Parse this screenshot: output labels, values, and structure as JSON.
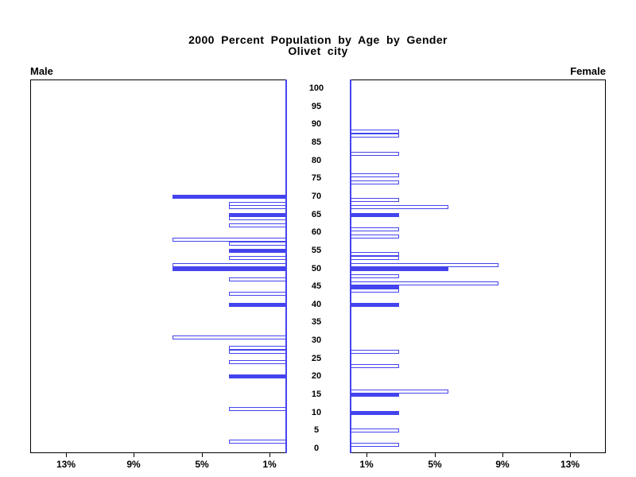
{
  "title": {
    "line1": "2000 Percent Population by Age by Gender",
    "line2": "Olivet city"
  },
  "panels": {
    "male_label": "Male",
    "female_label": "Female"
  },
  "colors": {
    "bar_blue": "#4444ee",
    "axis_black": "#000000",
    "hollow_fill": "#ffffff"
  },
  "chart_data": {
    "type": "bar",
    "subtype": "population-pyramid",
    "title": "2000 Percent Population by Age by Gender",
    "subtitle": "Olivet city",
    "unit": "percent of population",
    "age_axis": {
      "min": 0,
      "max": 100,
      "tick_interval": 5
    },
    "pct_axis": {
      "max": 15,
      "male_ticks": [
        13,
        9,
        5,
        1
      ],
      "female_ticks": [
        1,
        5,
        9,
        13
      ],
      "male_tick_labels": [
        "13%",
        "9%",
        "5%",
        "1%"
      ],
      "female_tick_labels": [
        "1%",
        "5%",
        "9%",
        "13%"
      ]
    },
    "legend": {
      "filled_means": "highlighted age group",
      "hollow_means": "regular age group"
    },
    "male": [
      {
        "age": 70,
        "pct": 6.7,
        "filled": true
      },
      {
        "age": 68,
        "pct": 3.4,
        "filled": false
      },
      {
        "age": 67,
        "pct": 3.4,
        "filled": false
      },
      {
        "age": 65,
        "pct": 3.4,
        "filled": true
      },
      {
        "age": 64,
        "pct": 3.4,
        "filled": false
      },
      {
        "age": 62,
        "pct": 3.4,
        "filled": false
      },
      {
        "age": 58,
        "pct": 6.7,
        "filled": false
      },
      {
        "age": 57,
        "pct": 3.4,
        "filled": false
      },
      {
        "age": 55,
        "pct": 3.4,
        "filled": true
      },
      {
        "age": 53,
        "pct": 3.4,
        "filled": false
      },
      {
        "age": 51,
        "pct": 6.7,
        "filled": false
      },
      {
        "age": 50,
        "pct": 6.7,
        "filled": true
      },
      {
        "age": 47,
        "pct": 3.4,
        "filled": false
      },
      {
        "age": 43,
        "pct": 3.4,
        "filled": false
      },
      {
        "age": 40,
        "pct": 3.4,
        "filled": true
      },
      {
        "age": 31,
        "pct": 6.7,
        "filled": false
      },
      {
        "age": 28,
        "pct": 3.4,
        "filled": false
      },
      {
        "age": 27,
        "pct": 3.4,
        "filled": false
      },
      {
        "age": 24,
        "pct": 3.4,
        "filled": false
      },
      {
        "age": 20,
        "pct": 3.4,
        "filled": true
      },
      {
        "age": 11,
        "pct": 3.4,
        "filled": false
      },
      {
        "age": 2,
        "pct": 3.4,
        "filled": false
      }
    ],
    "female": [
      {
        "age": 88,
        "pct": 2.9,
        "filled": false
      },
      {
        "age": 87,
        "pct": 2.9,
        "filled": false
      },
      {
        "age": 82,
        "pct": 2.9,
        "filled": false
      },
      {
        "age": 76,
        "pct": 2.9,
        "filled": false
      },
      {
        "age": 74,
        "pct": 2.9,
        "filled": false
      },
      {
        "age": 69,
        "pct": 2.9,
        "filled": false
      },
      {
        "age": 67,
        "pct": 5.8,
        "filled": false
      },
      {
        "age": 65,
        "pct": 2.9,
        "filled": true
      },
      {
        "age": 61,
        "pct": 2.9,
        "filled": false
      },
      {
        "age": 59,
        "pct": 2.9,
        "filled": false
      },
      {
        "age": 54,
        "pct": 2.9,
        "filled": false
      },
      {
        "age": 53,
        "pct": 2.9,
        "filled": false
      },
      {
        "age": 51,
        "pct": 8.8,
        "filled": false
      },
      {
        "age": 50,
        "pct": 5.8,
        "filled": true
      },
      {
        "age": 48,
        "pct": 2.9,
        "filled": false
      },
      {
        "age": 46,
        "pct": 8.8,
        "filled": false
      },
      {
        "age": 45,
        "pct": 2.9,
        "filled": true
      },
      {
        "age": 44,
        "pct": 2.9,
        "filled": false
      },
      {
        "age": 40,
        "pct": 2.9,
        "filled": true
      },
      {
        "age": 27,
        "pct": 2.9,
        "filled": false
      },
      {
        "age": 23,
        "pct": 2.9,
        "filled": false
      },
      {
        "age": 16,
        "pct": 5.8,
        "filled": false
      },
      {
        "age": 15,
        "pct": 2.9,
        "filled": true
      },
      {
        "age": 10,
        "pct": 2.9,
        "filled": true
      },
      {
        "age": 5,
        "pct": 2.9,
        "filled": false
      },
      {
        "age": 1,
        "pct": 2.9,
        "filled": false
      }
    ]
  }
}
